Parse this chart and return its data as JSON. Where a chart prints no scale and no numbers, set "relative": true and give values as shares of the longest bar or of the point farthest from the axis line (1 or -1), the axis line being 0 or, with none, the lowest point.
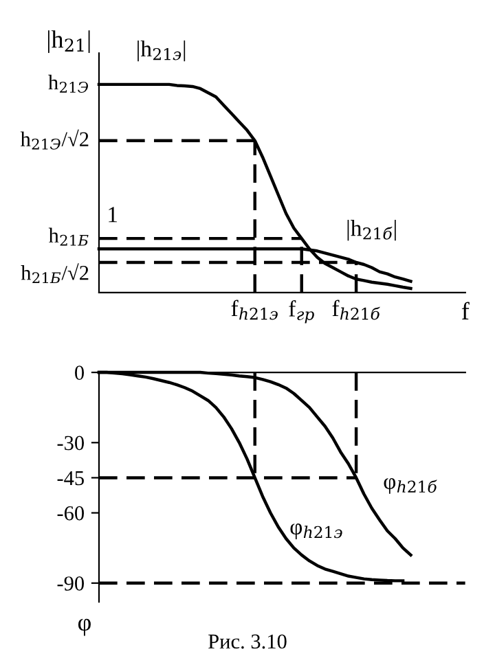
{
  "chart_data": [
    {
      "type": "line",
      "relative": true,
      "ylabel": "|h$_{21}$|",
      "xlabel": "f",
      "grid": false,
      "legend": false,
      "categories": [
        null,
        null,
        null,
        null,
        null,
        null,
        null,
        null,
        null,
        null,
        null,
        null,
        null,
        null,
        null,
        null,
        null,
        null,
        null,
        null,
        "f$_{h21э}$",
        null,
        null,
        null,
        null,
        null,
        "f$_{гр}$",
        null,
        null,
        null,
        null,
        null,
        null,
        "f$_{h21б}$",
        null,
        null,
        null,
        null,
        null,
        null,
        null,
        null,
        null,
        null,
        null
      ],
      "series": [
        {
          "name": "|h$_{21э}$|",
          "color": "#000000",
          "values": [
            1,
            1,
            1,
            1,
            1,
            1,
            1,
            1,
            1,
            1,
            0.995,
            0.993,
            0.99,
            0.98,
            0.96,
            0.94,
            0.9,
            0.86,
            0.82,
            0.78,
            0.73,
            0.65,
            0.56,
            0.47,
            0.38,
            0.31,
            0.26,
            0.21,
            0.17,
            0.14,
            0.12,
            0.1,
            0.08,
            0.065,
            0.058,
            0.05,
            0.045,
            0.04,
            0.033,
            0.026,
            0.02,
            null,
            null,
            null,
            null
          ]
        },
        {
          "name": "|h$_{21б}$|",
          "color": "#000000",
          "values": [
            0.21,
            0.21,
            0.21,
            0.21,
            0.21,
            0.21,
            0.21,
            0.21,
            0.21,
            0.21,
            0.21,
            0.21,
            0.21,
            0.21,
            0.21,
            0.21,
            0.21,
            0.21,
            0.21,
            0.21,
            0.21,
            0.21,
            0.21,
            0.21,
            0.21,
            0.21,
            0.21,
            0.205,
            0.2,
            0.19,
            0.18,
            0.17,
            0.16,
            0.145,
            0.135,
            0.12,
            0.1,
            0.09,
            0.075,
            0.065,
            0.054,
            null,
            null,
            null,
            null
          ]
        },
        {
          "color": "#000000",
          "line_style": "dashed",
          "values": [
            0.73,
            0.73,
            0.73,
            0.73,
            0.73,
            0.73,
            0.73,
            0.73,
            0.73,
            0.73,
            0.73,
            0.73,
            0.73,
            0.73,
            0.73,
            0.73,
            0.73,
            0.73,
            0.73,
            0.73,
            0.73,
            null,
            null,
            null,
            null,
            null,
            null,
            null,
            null,
            null,
            null,
            null,
            null,
            null,
            null,
            null,
            null,
            null,
            null,
            null,
            null,
            null,
            null,
            null,
            null
          ]
        },
        {
          "name": "1",
          "color": "#000000",
          "line_style": "dashed",
          "values": [
            0.26,
            0.26,
            0.26,
            0.26,
            0.26,
            0.26,
            0.26,
            0.26,
            0.26,
            0.26,
            0.26,
            0.26,
            0.26,
            0.26,
            0.26,
            0.26,
            0.26,
            0.26,
            0.26,
            0.26,
            0.26,
            0.26,
            0.26,
            0.26,
            0.26,
            0.26,
            0.26,
            null,
            null,
            null,
            null,
            null,
            null,
            null,
            null,
            null,
            null,
            null,
            null,
            null,
            null,
            null,
            null,
            null,
            null
          ]
        },
        {
          "color": "#000000",
          "line_style": "dashed",
          "values": [
            0.145,
            0.145,
            0.145,
            0.145,
            0.145,
            0.145,
            0.145,
            0.145,
            0.145,
            0.145,
            0.145,
            0.145,
            0.145,
            0.145,
            0.145,
            0.145,
            0.145,
            0.145,
            0.145,
            0.145,
            0.145,
            0.145,
            0.145,
            0.145,
            0.145,
            0.145,
            0.145,
            0.145,
            0.145,
            0.145,
            0.145,
            0.145,
            0.145,
            0.145,
            null,
            null,
            null,
            null,
            null,
            null,
            null,
            null,
            null,
            null,
            null
          ]
        }
      ],
      "ref_lines": [
        {
          "axis": "x",
          "value": "f$_{h21э}$",
          "line_style": "dashed"
        },
        {
          "axis": "x",
          "value": "f$_{гр}$",
          "line_style": "dashed"
        },
        {
          "axis": "x",
          "value": "f$_{h21б}$",
          "line_style": "dashed"
        }
      ],
      "annotations": [
        "h$_{21Э}$",
        "h$_{21Э}$/√2",
        "h$_{21Б}$",
        "h$_{21Б}$/√2"
      ]
    },
    {
      "type": "line",
      "ylabel": "φ",
      "ylim": [
        -98,
        0
      ],
      "yticks": [
        0,
        -30,
        -45,
        -60,
        -90
      ],
      "tick_labels": "y",
      "grid": false,
      "legend": false,
      "categories": [
        null,
        null,
        null,
        null,
        null,
        null,
        null,
        null,
        null,
        null,
        null,
        null,
        null,
        null,
        null,
        null,
        null,
        null,
        null,
        null,
        "f$_{h21э}$",
        null,
        null,
        null,
        null,
        null,
        "f$_{гр}$",
        null,
        null,
        null,
        null,
        null,
        null,
        "f$_{h21б}$",
        null,
        null,
        null,
        null,
        null,
        null,
        null,
        null,
        null,
        null,
        null
      ],
      "series": [
        {
          "name": "φ$_{h21э}$",
          "color": "#000000",
          "values": [
            0,
            0,
            -0.3,
            -0.6,
            -1,
            -1.5,
            -2,
            -2.7,
            -3.5,
            -4.3,
            -5.3,
            -6.5,
            -8,
            -10,
            -12,
            -15,
            -19,
            -24,
            -30,
            -37,
            -45,
            -53,
            -60,
            -66,
            -71,
            -75,
            -78,
            -80.5,
            -82.5,
            -84,
            -85,
            -86,
            -87,
            -87.6,
            -88.2,
            -88.5,
            -88.7,
            -88.9,
            -89,
            -89,
            null,
            null,
            null,
            null,
            null
          ]
        },
        {
          "name": "φ$_{h21б}$",
          "color": "#000000",
          "values": [
            0,
            0,
            0,
            0,
            0,
            0,
            0,
            0,
            0,
            0,
            0,
            0,
            0,
            0,
            -0.3,
            -0.5,
            -0.8,
            -1.1,
            -1.5,
            -1.8,
            -2.2,
            -3,
            -4,
            -5.2,
            -6.7,
            -9,
            -12,
            -15,
            -19,
            -23,
            -28,
            -34,
            -39,
            -45,
            -52,
            -58,
            -63,
            -67.7,
            -71,
            -75,
            -78,
            null,
            null,
            null,
            null
          ]
        },
        {
          "color": "#000000",
          "line_style": "dashed",
          "values": [
            -45,
            -45,
            -45,
            -45,
            -45,
            -45,
            -45,
            -45,
            -45,
            -45,
            -45,
            -45,
            -45,
            -45,
            -45,
            -45,
            -45,
            -45,
            -45,
            -45,
            -45,
            -45,
            -45,
            -45,
            -45,
            -45,
            -45,
            -45,
            -45,
            -45,
            -45,
            -45,
            -45,
            -45,
            null,
            null,
            null,
            null,
            null,
            null,
            null,
            null,
            null,
            null,
            null
          ]
        }
      ],
      "ref_lines": [
        {
          "axis": "x",
          "value": "f$_{h21э}$",
          "line_style": "dashed"
        },
        {
          "axis": "x",
          "value": "f$_{h21б}$",
          "line_style": "dashed"
        },
        {
          "axis": "y",
          "value": -90,
          "line_style": "dashed"
        }
      ],
      "annotations": [
        "Рис. 3.10"
      ]
    }
  ]
}
